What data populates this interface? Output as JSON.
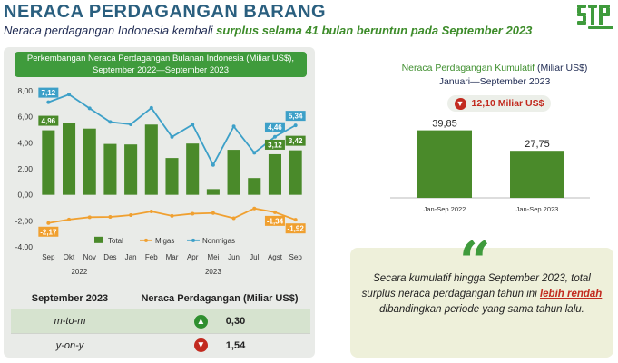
{
  "header": {
    "title": "NERACA PERDAGANGAN BARANG",
    "subtitle_prefix": "Neraca perdagangan Indonesia kembali ",
    "subtitle_highlight": "surplus selama 41 bulan beruntun pada September 2023"
  },
  "logo": {
    "name": "bps-sensus-logo",
    "color": "#3f9b3c"
  },
  "colors": {
    "total": "#4a8a2a",
    "migas": "#f0a030",
    "nonmigas": "#3da0c8",
    "accent_green": "#3f9b3c",
    "deficit_red": "#c22a1f"
  },
  "chart_data": [
    {
      "type": "bar",
      "title": "Perkembangan Neraca Perdagangan Bulanan Indonesia (Miliar US$), September 2022—September 2023",
      "categories": [
        "Sep",
        "Okt",
        "Nov",
        "Des",
        "Jan",
        "Feb",
        "Mar",
        "Apr",
        "Mei",
        "Jun",
        "Jul",
        "Agst",
        "Sep"
      ],
      "groups": [
        {
          "label": "2022",
          "from": 0,
          "to": 3
        },
        {
          "label": "2023",
          "from": 4,
          "to": 12
        }
      ],
      "ylim": [
        -4,
        8
      ],
      "yticks": [
        "-4,00",
        "-2,00",
        "0,00",
        "2,00",
        "4,00",
        "6,00",
        "8,00"
      ],
      "series": [
        {
          "name": "Total",
          "kind": "bar",
          "values": [
            4.96,
            5.53,
            5.09,
            3.91,
            3.87,
            5.4,
            2.83,
            3.94,
            0.44,
            3.46,
            1.29,
            3.12,
            3.42
          ]
        },
        {
          "name": "Migas",
          "kind": "line",
          "values": [
            -2.17,
            -1.9,
            -1.72,
            -1.7,
            -1.56,
            -1.28,
            -1.62,
            -1.45,
            -1.4,
            -1.8,
            -1.05,
            -1.34,
            -1.92
          ]
        },
        {
          "name": "Nonmigas",
          "kind": "line",
          "values": [
            7.12,
            7.71,
            6.65,
            5.6,
            5.42,
            6.68,
            4.45,
            5.4,
            2.3,
            5.26,
            3.23,
            4.46,
            5.34
          ]
        }
      ],
      "data_labels": [
        {
          "series": "Nonmigas",
          "index": 0,
          "text": "7,12"
        },
        {
          "series": "Total",
          "index": 0,
          "text": "4,96"
        },
        {
          "series": "Migas",
          "index": 0,
          "text": "-2,17"
        },
        {
          "series": "Nonmigas",
          "index": 11,
          "text": "4,46"
        },
        {
          "series": "Nonmigas",
          "index": 12,
          "text": "5,34"
        },
        {
          "series": "Total",
          "index": 11,
          "text": "3,12"
        },
        {
          "series": "Total",
          "index": 12,
          "text": "3,42"
        },
        {
          "series": "Migas",
          "index": 11,
          "text": "-1,34"
        },
        {
          "series": "Migas",
          "index": 12,
          "text": "-1,92"
        }
      ],
      "legend": "bottom-inside"
    },
    {
      "type": "bar",
      "title": "Neraca Perdagangan Kumulatif (Miliar US$)",
      "subtitle": "Januari—September 2023",
      "categories": [
        "Jan-Sep 2022",
        "Jan-Sep 2023"
      ],
      "values": [
        39.85,
        27.75
      ],
      "value_labels": [
        "39,85",
        "27,75"
      ],
      "ylim": [
        0,
        45
      ]
    }
  ],
  "chart_title_line1": "Perkembangan Neraca Perdagangan Bulanan Indonesia (Miliar US$),",
  "chart_title_line2": "September 2022—September 2023",
  "table": {
    "header_period": "September 2023",
    "header_value": "Neraca Perdagangan (Miliar US$)",
    "rows": [
      {
        "label": "m-to-m",
        "direction": "up",
        "value": "0,30"
      },
      {
        "label": "y-on-y",
        "direction": "down",
        "value": "1,54"
      }
    ]
  },
  "cumulative": {
    "title": "Neraca Perdagangan Kumulatif",
    "unit": " (Miliar US$)",
    "period": "Januari—September 2023",
    "change_direction": "down",
    "change_text": "12,10 Miliar US$"
  },
  "quote": {
    "mark": "“",
    "text_before": "Secara kumulatif hingga September 2023, total surplus neraca perdagangan tahun ini ",
    "emphasis": "lebih rendah",
    "text_after": " dibandingkan periode yang sama tahun lalu."
  }
}
